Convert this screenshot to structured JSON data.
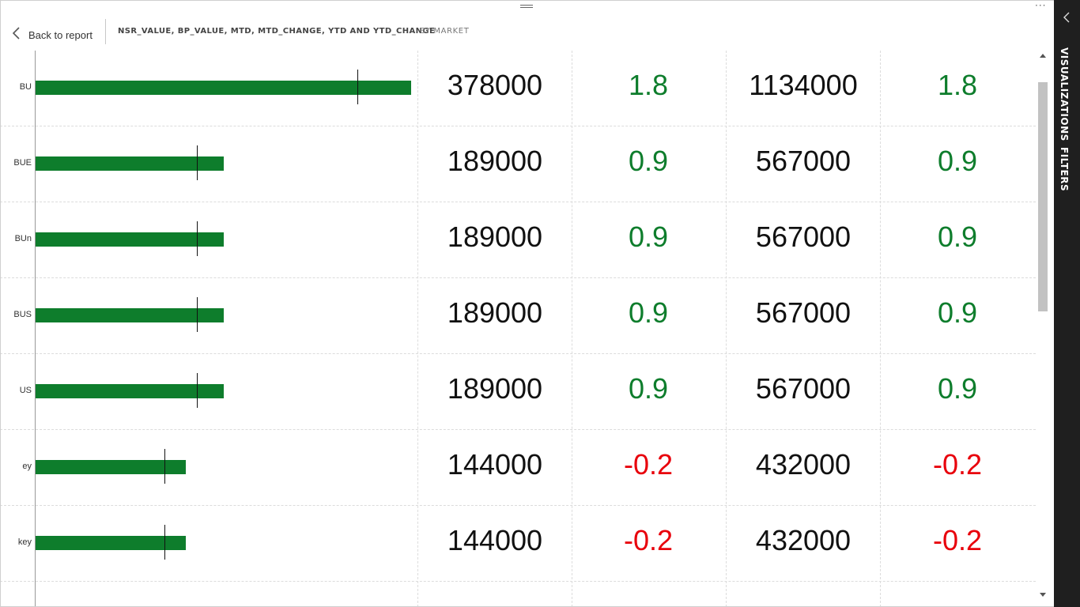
{
  "header": {
    "back_label": "Back to report",
    "title": "NSR_VALUE, BP_VALUE, MTD, MTD_CHANGE, YTD AND YTD_CHANGE",
    "subtitle": "BY MARKET"
  },
  "side_pane": {
    "tabs": [
      "VISUALIZATIONS",
      "FILTERS"
    ]
  },
  "colors": {
    "bar": "#0e7d2c",
    "positive": "#0e7d2c",
    "negative": "#e8000b",
    "pane": "#1f1f1f"
  },
  "chart_data": {
    "type": "table",
    "columns": [
      "NSR_VALUE vs BP_VALUE",
      "MTD",
      "MTD_CHANGE",
      "YTD",
      "YTD_CHANGE"
    ],
    "bar_scale_max": 378000,
    "rows": [
      {
        "label": "BU",
        "bar": 378000,
        "target": 324000,
        "mtd": "378000",
        "mtd_change": "1.8",
        "ytd": "1134000",
        "ytd_change": "1.8"
      },
      {
        "label": "BUE",
        "bar": 189000,
        "target": 162000,
        "mtd": "189000",
        "mtd_change": "0.9",
        "ytd": "567000",
        "ytd_change": "0.9"
      },
      {
        "label": "BUn",
        "bar": 189000,
        "target": 162000,
        "mtd": "189000",
        "mtd_change": "0.9",
        "ytd": "567000",
        "ytd_change": "0.9"
      },
      {
        "label": "BUS",
        "bar": 189000,
        "target": 162000,
        "mtd": "189000",
        "mtd_change": "0.9",
        "ytd": "567000",
        "ytd_change": "0.9"
      },
      {
        "label": "US",
        "bar": 189000,
        "target": 162000,
        "mtd": "189000",
        "mtd_change": "0.9",
        "ytd": "567000",
        "ytd_change": "0.9"
      },
      {
        "label": "ey",
        "bar": 151000,
        "target": 130000,
        "mtd": "144000",
        "mtd_change": "-0.2",
        "ytd": "432000",
        "ytd_change": "-0.2"
      },
      {
        "label": "key",
        "bar": 151000,
        "target": 130000,
        "mtd": "144000",
        "mtd_change": "-0.2",
        "ytd": "432000",
        "ytd_change": "-0.2"
      }
    ]
  }
}
